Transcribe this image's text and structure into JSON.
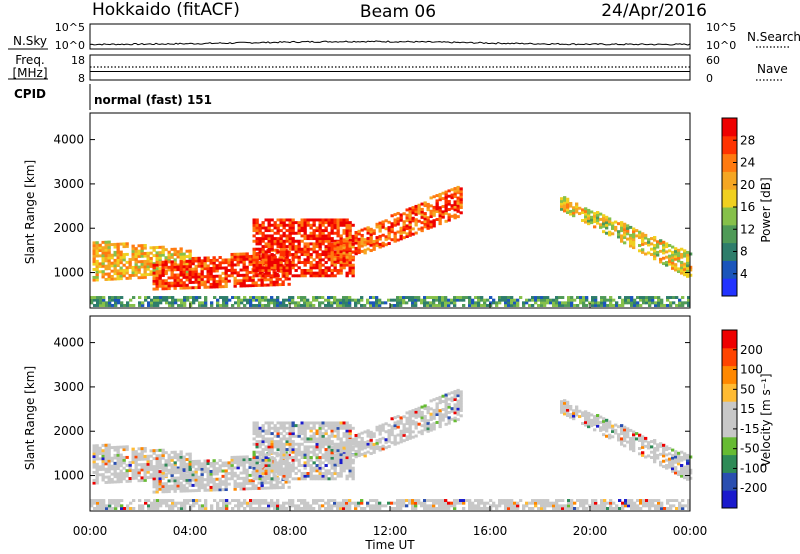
{
  "header": {
    "station": "Hokkaido (fitACF)",
    "beam": "Beam 06",
    "date": "24/Apr/2016"
  },
  "summary": {
    "nsky_label": "N.Sky",
    "nsky_ticks": [
      "10^5",
      "10^0"
    ],
    "nsearch_label": "N.Search",
    "nsearch_ticks": [
      "10^5",
      "10^0"
    ],
    "freq_label_line1": "Freq.",
    "freq_label_line2": "[MHz]",
    "freq_ticks": [
      "18",
      "8"
    ],
    "nave_label": "Nave",
    "nave_ticks": [
      "60",
      "0"
    ],
    "cpid_label": "CPID",
    "cpid_value": "normal (fast) 151"
  },
  "colors": {
    "power_scale": [
      "#2233ff",
      "#1a55bb",
      "#2e7d6b",
      "#4f9a57",
      "#86c04a",
      "#f0d020",
      "#f5a623",
      "#ff7a10",
      "#ff3300",
      "#ee0000"
    ],
    "velocity_scale": [
      "#ee0000",
      "#ff4400",
      "#ff8800",
      "#ffbb33",
      "#c8c8c8",
      "#c8c8c8",
      "#66bb33",
      "#2e8b57",
      "#2a4fb0",
      "#1a1acc"
    ]
  },
  "chart_data": [
    {
      "type": "heatmap",
      "name": "power",
      "ylabel": "Slant Range [km]",
      "xlabel": "",
      "yticks": [
        "1000",
        "2000",
        "3000",
        "4000"
      ],
      "ylim": [
        200,
        4600
      ],
      "colorbar_label": "Power [dB]",
      "colorbar_ticks": [
        "4",
        "8",
        "12",
        "16",
        "20",
        "24",
        "28"
      ],
      "clim": [
        0,
        30
      ]
    },
    {
      "type": "heatmap",
      "name": "velocity",
      "ylabel": "Slant Range [km]",
      "xlabel": "Time UT",
      "xticks": [
        "00:00",
        "04:00",
        "08:00",
        "12:00",
        "16:00",
        "20:00",
        "00:00"
      ],
      "xlim": [
        0,
        24
      ],
      "yticks": [
        "1000",
        "2000",
        "3000",
        "4000"
      ],
      "ylim": [
        200,
        4600
      ],
      "colorbar_label": "Velocity [m s⁻¹]",
      "colorbar_ticks": [
        "200",
        "100",
        "50",
        "15",
        "-15",
        "-50",
        "-100",
        "-200"
      ],
      "clim": [
        -250,
        250
      ]
    }
  ]
}
